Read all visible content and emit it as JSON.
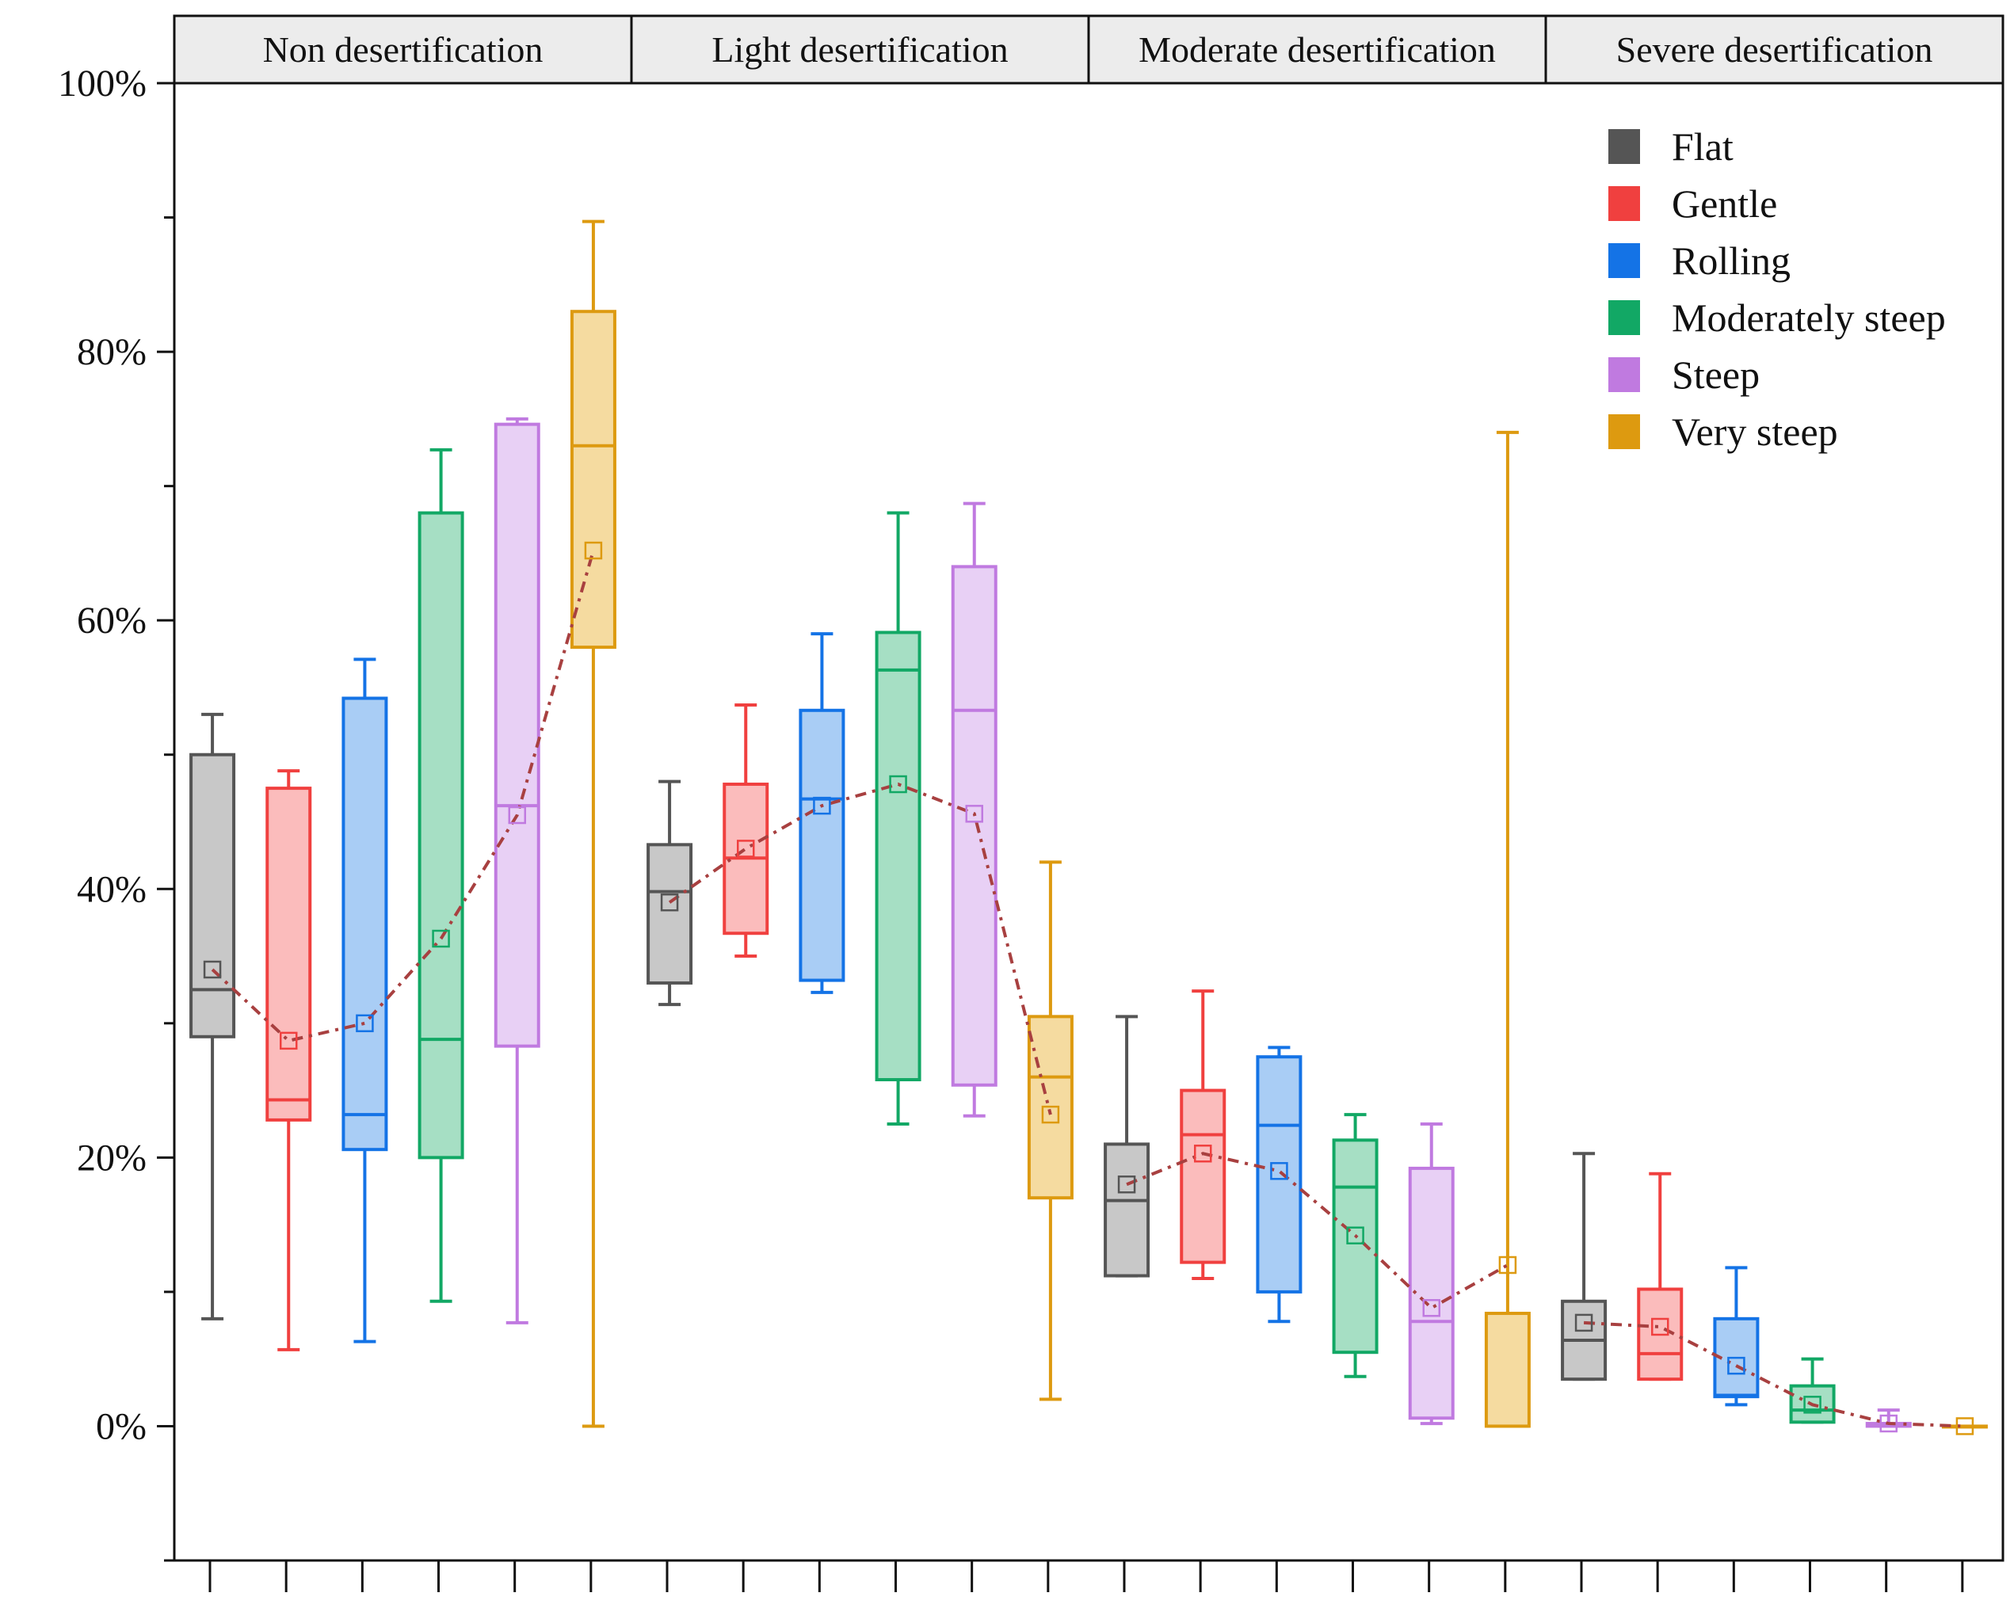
{
  "chart_data": {
    "type": "box",
    "y_axis": {
      "range": [
        -0.1,
        1.0
      ],
      "tick_labels": [
        "0%",
        "20%",
        "40%",
        "60%",
        "80%",
        "100%"
      ]
    },
    "groups": [
      "Non desertification",
      "Light desertification",
      "Moderate desertification",
      "Severe desertification"
    ],
    "series_names": [
      "Flat",
      "Gentle",
      "Rolling",
      "Moderately steep",
      "Steep",
      "Very steep"
    ],
    "colors": {
      "stroke": [
        "#555555",
        "#f0403f",
        "#1473e6",
        "#12a865",
        "#c07ae0",
        "#dd9a10"
      ],
      "fill": [
        "#c8c8c8",
        "#fbbcbc",
        "#a9cdf5",
        "#a6dfc4",
        "#e8d0f5",
        "#f5dba0"
      ],
      "mean_line": "#a84040"
    },
    "boxes": [
      [
        {
          "min": 0.08,
          "q1": 0.29,
          "median": 0.325,
          "q3": 0.5,
          "max": 0.53,
          "mean": 0.34
        },
        {
          "min": 0.057,
          "q1": 0.228,
          "median": 0.243,
          "q3": 0.475,
          "max": 0.488,
          "mean": 0.287
        },
        {
          "min": 0.063,
          "q1": 0.206,
          "median": 0.232,
          "q3": 0.542,
          "max": 0.571,
          "mean": 0.3
        },
        {
          "min": 0.093,
          "q1": 0.2,
          "median": 0.288,
          "q3": 0.68,
          "max": 0.727,
          "mean": 0.363
        },
        {
          "min": 0.077,
          "q1": 0.283,
          "median": 0.462,
          "q3": 0.746,
          "max": 0.75,
          "mean": 0.455
        },
        {
          "min": 0.0,
          "q1": 0.58,
          "median": 0.73,
          "q3": 0.83,
          "max": 0.897,
          "mean": 0.652
        }
      ],
      [
        {
          "min": 0.314,
          "q1": 0.33,
          "median": 0.398,
          "q3": 0.433,
          "max": 0.48,
          "mean": 0.39
        },
        {
          "min": 0.35,
          "q1": 0.367,
          "median": 0.423,
          "q3": 0.478,
          "max": 0.537,
          "mean": 0.43
        },
        {
          "min": 0.323,
          "q1": 0.332,
          "median": 0.467,
          "q3": 0.533,
          "max": 0.59,
          "mean": 0.462
        },
        {
          "min": 0.225,
          "q1": 0.258,
          "median": 0.563,
          "q3": 0.591,
          "max": 0.68,
          "mean": 0.478
        },
        {
          "min": 0.231,
          "q1": 0.254,
          "median": 0.533,
          "q3": 0.64,
          "max": 0.687,
          "mean": 0.456
        },
        {
          "min": 0.02,
          "q1": 0.17,
          "median": 0.26,
          "q3": 0.305,
          "max": 0.42,
          "mean": 0.232
        }
      ],
      [
        {
          "min": 0.112,
          "q1": 0.112,
          "median": 0.168,
          "q3": 0.21,
          "max": 0.305,
          "mean": 0.18
        },
        {
          "min": 0.11,
          "q1": 0.122,
          "median": 0.217,
          "q3": 0.25,
          "max": 0.324,
          "mean": 0.203
        },
        {
          "min": 0.078,
          "q1": 0.1,
          "median": 0.224,
          "q3": 0.275,
          "max": 0.282,
          "mean": 0.19
        },
        {
          "min": 0.037,
          "q1": 0.055,
          "median": 0.178,
          "q3": 0.213,
          "max": 0.232,
          "mean": 0.142
        },
        {
          "min": 0.002,
          "q1": 0.006,
          "median": 0.078,
          "q3": 0.192,
          "max": 0.225,
          "mean": 0.088
        },
        {
          "min": 0.0,
          "q1": 0.0,
          "median": 0.0,
          "q3": 0.084,
          "max": 0.74,
          "mean": 0.12
        }
      ],
      [
        {
          "min": 0.035,
          "q1": 0.035,
          "median": 0.064,
          "q3": 0.093,
          "max": 0.203,
          "mean": 0.077
        },
        {
          "min": 0.035,
          "q1": 0.035,
          "median": 0.054,
          "q3": 0.102,
          "max": 0.188,
          "mean": 0.074
        },
        {
          "min": 0.016,
          "q1": 0.022,
          "median": 0.023,
          "q3": 0.08,
          "max": 0.118,
          "mean": 0.045
        },
        {
          "min": 0.003,
          "q1": 0.003,
          "median": 0.012,
          "q3": 0.03,
          "max": 0.05,
          "mean": 0.016
        },
        {
          "min": 0.0,
          "q1": 0.0,
          "median": 0.001,
          "q3": 0.002,
          "max": 0.012,
          "mean": 0.002
        },
        {
          "min": 0.0,
          "q1": 0.0,
          "median": 0.0,
          "q3": 0.0,
          "max": 0.0,
          "mean": 0.0
        }
      ]
    ],
    "legend": {
      "position": "top-right",
      "entries": [
        "Flat",
        "Gentle",
        "Rolling",
        "Moderately steep",
        "Steep",
        "Very steep"
      ]
    }
  }
}
